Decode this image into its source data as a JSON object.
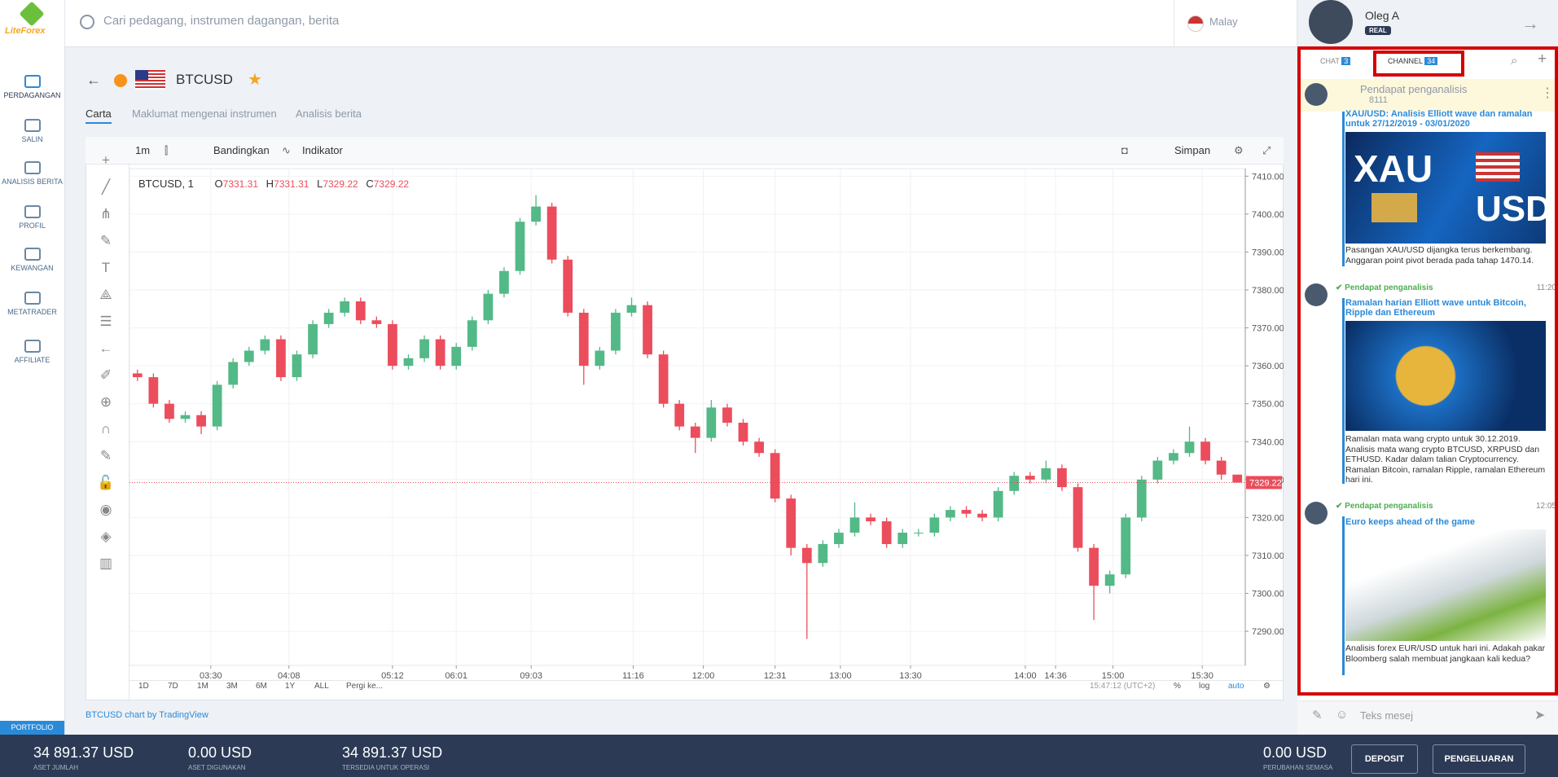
{
  "brand": "LiteForex",
  "search_placeholder": "Cari pedagang, instrumen dagangan, berita",
  "language": "Malay",
  "user": {
    "name": "Oleg A",
    "badge": "REAL"
  },
  "nav": [
    "PERDAGANGAN",
    "SALIN",
    "ANALISIS BERITA",
    "PROFIL",
    "KEWANGAN",
    "METATRADER",
    "AFFILIATE"
  ],
  "instrument": "BTCUSD",
  "tabs": [
    "Carta",
    "Maklumat mengenai instrumen",
    "Analisis berita"
  ],
  "toolbar": {
    "interval": "1m",
    "compare": "Bandingkan",
    "indicator": "Indikator",
    "save": "Simpan"
  },
  "chart_data": {
    "type": "candlestick",
    "title": "BTCUSD, 1",
    "up_color": "#53b987",
    "down_color": "#eb4d5c",
    "grid": true,
    "series": [
      {
        "name": "O",
        "values": [
          7358,
          7357,
          7350,
          7346,
          7347,
          7344,
          7355,
          7361,
          7364,
          7367,
          7357,
          7363,
          7371,
          7374,
          7377,
          7372,
          7371,
          7360,
          7362,
          7367,
          7360,
          7365,
          7372,
          7379,
          7385,
          7398,
          7402,
          7388,
          7374,
          7360,
          7364,
          7374,
          7376,
          7363,
          7350,
          7344,
          7341,
          7349,
          7345,
          7340,
          7337,
          7325,
          7312,
          7308,
          7313,
          7316,
          7320,
          7319,
          7313,
          7316,
          7316,
          7320,
          7322,
          7321,
          7320,
          7327,
          7331,
          7330,
          7333,
          7328,
          7312,
          7302,
          7305,
          7320,
          7330,
          7335,
          7337,
          7340,
          7335,
          7331.31
        ]
      },
      {
        "name": "H",
        "values": [
          7359,
          7358,
          7351,
          7348,
          7348,
          7356,
          7362,
          7365,
          7368,
          7368,
          7364,
          7372,
          7375,
          7378,
          7378,
          7373,
          7372,
          7363,
          7368,
          7368,
          7366,
          7373,
          7380,
          7386,
          7399,
          7405,
          7403,
          7389,
          7375,
          7365,
          7375,
          7378,
          7377,
          7364,
          7351,
          7345,
          7351,
          7350,
          7346,
          7341,
          7338,
          7326,
          7313,
          7314,
          7317,
          7324,
          7321,
          7320,
          7317,
          7317,
          7321,
          7323,
          7323,
          7322,
          7328,
          7332,
          7332,
          7335,
          7334,
          7329,
          7313,
          7306,
          7321,
          7331,
          7336,
          7338,
          7344,
          7341,
          7336,
          7331.31
        ]
      },
      {
        "name": "L",
        "values": [
          7356,
          7349,
          7345,
          7345,
          7342,
          7343,
          7354,
          7360,
          7363,
          7356,
          7356,
          7362,
          7370,
          7373,
          7371,
          7370,
          7359,
          7359,
          7361,
          7359,
          7359,
          7364,
          7371,
          7378,
          7384,
          7397,
          7387,
          7373,
          7355,
          7359,
          7363,
          7373,
          7362,
          7349,
          7343,
          7337,
          7340,
          7344,
          7339,
          7336,
          7324,
          7310,
          7288,
          7307,
          7312,
          7315,
          7318,
          7312,
          7312,
          7315,
          7315,
          7319,
          7320,
          7319,
          7319,
          7326,
          7329,
          7329,
          7327,
          7311,
          7293,
          7300,
          7304,
          7319,
          7329,
          7334,
          7336,
          7334,
          7330,
          7329.22
        ]
      },
      {
        "name": "C",
        "values": [
          7357,
          7350,
          7346,
          7347,
          7344,
          7355,
          7361,
          7364,
          7367,
          7357,
          7363,
          7371,
          7374,
          7377,
          7372,
          7371,
          7360,
          7362,
          7367,
          7360,
          7365,
          7372,
          7379,
          7385,
          7398,
          7402,
          7388,
          7374,
          7360,
          7364,
          7374,
          7376,
          7363,
          7350,
          7344,
          7341,
          7349,
          7345,
          7340,
          7337,
          7325,
          7312,
          7308,
          7313,
          7316,
          7320,
          7319,
          7313,
          7316,
          7316,
          7320,
          7322,
          7321,
          7320,
          7327,
          7331,
          7330,
          7333,
          7328,
          7312,
          7302,
          7305,
          7320,
          7330,
          7335,
          7337,
          7340,
          7335,
          7331.31,
          7329.22
        ]
      }
    ],
    "last_price_label": "7329.22",
    "xlim": [
      0,
      70
    ],
    "xticks": [
      {
        "value": 5.1,
        "label": "03:30"
      },
      {
        "value": 10.0,
        "label": "04:08"
      },
      {
        "value": 16.5,
        "label": "05:12"
      },
      {
        "value": 20.5,
        "label": "06:01"
      },
      {
        "value": 25.2,
        "label": "09:03"
      },
      {
        "value": 31.6,
        "label": "11:16"
      },
      {
        "value": 36.0,
        "label": "12:00"
      },
      {
        "value": 40.5,
        "label": "12:31"
      },
      {
        "value": 44.6,
        "label": "13:00"
      },
      {
        "value": 49.0,
        "label": "13:30"
      },
      {
        "value": 56.2,
        "label": "14:00"
      },
      {
        "value": 58.1,
        "label": "14:36"
      },
      {
        "value": 61.7,
        "label": "15:00"
      },
      {
        "value": 67.3,
        "label": "15:30"
      }
    ],
    "ylim": [
      7281,
      7412
    ],
    "yticks": [
      {
        "value": 7290,
        "label": "7290.00"
      },
      {
        "value": 7300,
        "label": "7300.00"
      },
      {
        "value": 7310,
        "label": "7310.00"
      },
      {
        "value": 7320,
        "label": "7320.00"
      },
      {
        "value": 7330,
        "label": "7330.00"
      },
      {
        "value": 7340,
        "label": "7340.00"
      },
      {
        "value": 7350,
        "label": "7350.00"
      },
      {
        "value": 7360,
        "label": "7360.00"
      },
      {
        "value": 7370,
        "label": "7370.00"
      },
      {
        "value": 7380,
        "label": "7380.00"
      },
      {
        "value": 7390,
        "label": "7390.00"
      },
      {
        "value": 7400,
        "label": "7400.00"
      },
      {
        "value": 7410,
        "label": "7410.00"
      }
    ]
  },
  "ranges": [
    "1D",
    "7D",
    "1M",
    "3M",
    "6M",
    "1Y",
    "ALL",
    "Pergi ke..."
  ],
  "chart_status": {
    "time": "15:47:12 (UTC+2)",
    "percent": "%",
    "log": "log",
    "auto": "auto"
  },
  "credit": "BTCUSD chart by TradingView",
  "panel": {
    "tabs": [
      {
        "label": "CHAT",
        "count": "3"
      },
      {
        "label": "CHANNEL",
        "count": "34"
      }
    ],
    "channel": {
      "name": "Pendapat penganalisis",
      "members": "8111"
    },
    "messages": [
      {
        "title": "XAU/USD: Analisis Elliott wave dan ramalan untuk 27/12/2019 - 03/01/2020",
        "image_text": [
          "XAU",
          "USD"
        ],
        "text": "Pasangan XAU/USD dijangka terus berkembang. Anggaran point pivot berada pada tahap 1470.14."
      },
      {
        "author": "Pendapat penganalisis",
        "time": "11:20",
        "title": "Ramalan harian Elliott wave untuk Bitcoin, Ripple dan Ethereum",
        "text": "Ramalan mata wang crypto untuk 30.12.2019. Analisis mata wang crypto BTCUSD, XRPUSD dan ETHUSD. Kadar dalam talian Cryptocurrency. Ramalan Bitcoin, ramalan Ripple, ramalan Ethereum hari ini."
      },
      {
        "author": "Pendapat penganalisis",
        "time": "12:05",
        "title": "Euro keeps ahead of the game",
        "text": "Analisis forex EUR/USD untuk hari ini. Adakah pakar Bloomberg salah membuat jangkaan kali kedua?"
      }
    ],
    "input_placeholder": "Teks mesej"
  },
  "footer": {
    "portfolio": "PORTFOLIO",
    "stats": [
      {
        "value": "34 891.37 USD",
        "label": "ASET JUMLAH"
      },
      {
        "value": "0.00 USD",
        "label": "ASET DIGUNAKAN"
      },
      {
        "value": "34 891.37 USD",
        "label": "TERSEDIA UNTUK OPERASI"
      }
    ],
    "change": {
      "value": "0.00 USD",
      "label": "PERUBAHAN SEMASA"
    },
    "buttons": [
      "DEPOSIT",
      "PENGELUARAN"
    ]
  }
}
